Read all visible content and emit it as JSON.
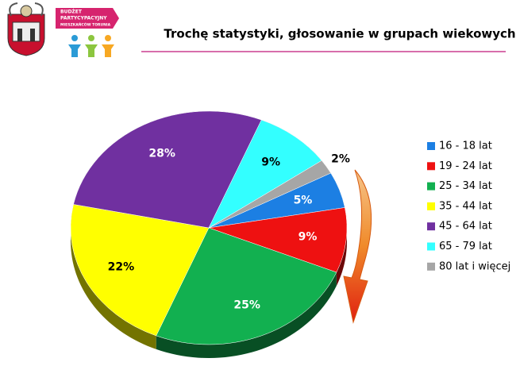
{
  "logo_text": [
    "BUDŻET",
    "PARTYCYPACYJNY",
    "MIESZKAŃCÓW TORUNIA"
  ],
  "chart_data": {
    "type": "pie",
    "title": "Trochę statystyki, głosowanie w grupach wiekowych",
    "categories": [
      "16 - 18 lat",
      "19 - 24 lat",
      "25 - 34 lat",
      "35 - 44 lat",
      "45 - 64 lat",
      "65 - 79 lat",
      "80 lat i więcej"
    ],
    "values": [
      5,
      9,
      25,
      22,
      28,
      9,
      2
    ],
    "value_labels": [
      "5%",
      "9%",
      "25%",
      "22%",
      "28%",
      "9%",
      "2%"
    ],
    "colors": [
      "#1c7fe3",
      "#ee1111",
      "#12b050",
      "#ffff00",
      "#7030a0",
      "#33ffff",
      "#a6a6a6"
    ],
    "legend": "right"
  }
}
